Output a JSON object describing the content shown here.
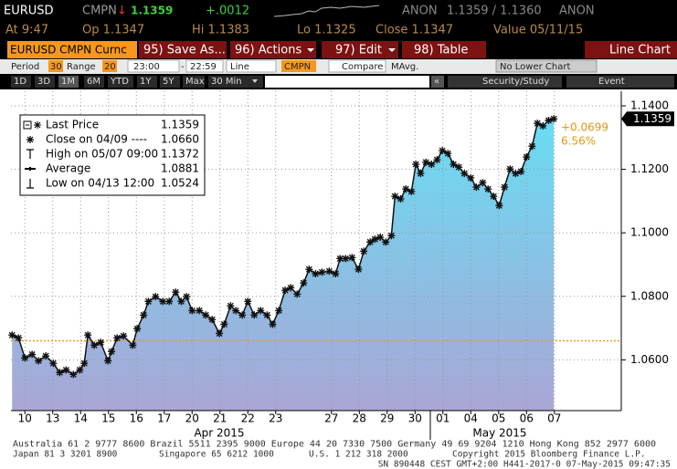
{
  "header": {
    "ticker": "EURUSD",
    "source": "CMPN",
    "direction": "↓",
    "price": "1.1359",
    "change": "+.0012",
    "bid_source": "ANON",
    "bid_ask": "1.1359 / 1.1360",
    "ask_source": "ANON"
  },
  "quote": {
    "time": "At 9:47",
    "open": "Op 1.1347",
    "high": "Hi 1.1383",
    "low": "Lo 1.1325",
    "close": "Close 1.1347",
    "value": "Value 05/11/15"
  },
  "menu": {
    "security": "EURUSD CMPN Curnc",
    "save": "95) Save As...",
    "actions": "96) Actions",
    "edit": "97) Edit",
    "table": "98) Table",
    "view": "Line Chart"
  },
  "settings": {
    "period_label": "Period",
    "period": "30",
    "range_label": "Range",
    "range": "20",
    "start": "23:00",
    "dash": "-",
    "end": "22:59",
    "style": "Line",
    "source": "CMPN",
    "compare": "Compare",
    "mavg": "MAvg.",
    "lower": "No Lower Chart"
  },
  "ranges": [
    "1D",
    "3D",
    "1M",
    "6M",
    "YTD",
    "1Y",
    "5Y",
    "Max",
    "30 Min"
  ],
  "nav": {
    "back": "«",
    "study": "Security/Study",
    "event": "Event"
  },
  "chart_data": {
    "type": "line",
    "x": [
      -0.46,
      -0.23,
      0,
      0.26,
      0.49,
      0.75,
      1.02,
      1.25,
      1.48,
      1.74,
      1.97,
      2.13,
      2.26,
      2.49,
      2.72,
      2.98,
      3.11,
      3.31,
      3.54,
      3.87,
      4.03,
      4.26,
      4.43,
      4.69,
      4.95,
      5.18,
      5.41,
      5.61,
      5.8,
      6.0,
      6.26,
      6.49,
      6.72,
      6.98,
      7.15,
      7.38,
      7.57,
      7.8,
      8.0,
      8.23,
      8.46,
      8.69,
      8.89,
      9.11,
      9.34,
      9.54,
      9.77,
      10.0,
      10.2,
      10.43,
      10.66,
      10.92,
      11.15,
      11.31,
      11.51,
      11.74,
      11.97,
      12.16,
      12.39,
      12.56,
      12.75,
      12.95,
      13.15,
      13.28,
      13.48,
      13.67,
      13.87,
      14.03,
      14.2,
      14.39,
      14.59,
      14.79,
      14.98,
      15.18,
      15.38,
      15.57,
      15.77,
      16.0,
      16.2,
      16.43,
      16.62,
      16.82,
      17.02,
      17.21,
      17.41,
      17.61,
      17.8,
      18.0,
      18.2,
      18.39,
      18.59,
      18.79,
      18.98
    ],
    "series": [
      {
        "name": "Last Price",
        "color": "#111111",
        "values": [
          1.0678,
          1.0669,
          1.0606,
          1.0617,
          1.0597,
          1.0612,
          1.0589,
          1.056,
          1.0568,
          1.0554,
          1.0568,
          1.0589,
          1.0678,
          1.0646,
          1.0655,
          1.0597,
          1.0626,
          1.0669,
          1.0675,
          1.0646,
          1.0698,
          1.0741,
          1.0784,
          1.0799,
          1.0784,
          1.0784,
          1.0813,
          1.0784,
          1.0799,
          1.0755,
          1.0755,
          1.0741,
          1.0727,
          1.0683,
          1.0712,
          1.077,
          1.0755,
          1.0741,
          1.0784,
          1.0741,
          1.0755,
          1.0741,
          1.0712,
          1.0755,
          1.0819,
          1.0827,
          1.0807,
          1.0842,
          1.0885,
          1.0871,
          1.0876,
          1.0879,
          1.0871,
          1.0919,
          1.0919,
          1.0922,
          1.0885,
          1.0942,
          1.0971,
          1.098,
          1.0986,
          1.0971,
          1.0991,
          1.1115,
          1.1107,
          1.1138,
          1.113,
          1.1216,
          1.1187,
          1.1222,
          1.1216,
          1.123,
          1.1259,
          1.125,
          1.1216,
          1.1207,
          1.1187,
          1.1173,
          1.1144,
          1.1158,
          1.1138,
          1.1115,
          1.1086,
          1.1144,
          1.1201,
          1.1187,
          1.1193,
          1.1239,
          1.1273,
          1.1345,
          1.1337,
          1.1354,
          1.1359
        ]
      }
    ],
    "last_price": 1.1359,
    "close_line": 1.066,
    "stats": [
      {
        "label": "Close on 04/09 ----",
        "value": "1.0660"
      },
      {
        "label": "High on 05/07 09:00",
        "value": "1.1372"
      },
      {
        "label": "Average",
        "value": "1.0881"
      },
      {
        "label": "Low on 04/13 12:00",
        "value": "1.0524"
      }
    ],
    "change_annotations": [
      "+0.0699",
      "6.56%"
    ],
    "xlim": [
      -0.5,
      21.4
    ],
    "xticks": [
      {
        "value": 0,
        "label": "10"
      },
      {
        "value": 1,
        "label": "13"
      },
      {
        "value": 2,
        "label": "14"
      },
      {
        "value": 3,
        "label": "15"
      },
      {
        "value": 4,
        "label": "16"
      },
      {
        "value": 5,
        "label": "17"
      },
      {
        "value": 6,
        "label": "20"
      },
      {
        "value": 7,
        "label": "21"
      },
      {
        "value": 8,
        "label": "22"
      },
      {
        "value": 9,
        "label": "23"
      },
      {
        "value": 11,
        "label": "27"
      },
      {
        "value": 12,
        "label": "28"
      },
      {
        "value": 13,
        "label": "29"
      },
      {
        "value": 14,
        "label": "30"
      },
      {
        "value": 15,
        "label": "01"
      },
      {
        "value": 16,
        "label": "04"
      },
      {
        "value": 17,
        "label": "05"
      },
      {
        "value": 18,
        "label": "06"
      },
      {
        "value": 19,
        "label": "07"
      }
    ],
    "month_labels": [
      "Apr 2015",
      "May 2015"
    ],
    "ylim": [
      1.044,
      1.1446
    ],
    "yticks": [
      {
        "value": 1.06,
        "label": "1.0600"
      },
      {
        "value": 1.08,
        "label": "1.0800"
      },
      {
        "value": 1.1,
        "label": "1.1000"
      },
      {
        "value": 1.12,
        "label": "1.1200"
      },
      {
        "value": 1.14,
        "label": "1.1400"
      }
    ],
    "grid": true
  },
  "footer": {
    "line1": "Australia 61 2 9777 8600 Brazil 5511 2395 9000 Europe 44 20 7330 7500 Germany 49 69 9204 1210 Hong Kong 852 2977 6000",
    "japan": "Japan 81 3 3201 8900",
    "singapore": "Singapore 65 6212 1000",
    "us": "U.S. 1 212 318 2000",
    "copyright": "Copyright 2015 Bloomberg Finance L.P.",
    "line3": "SN 890448 CEST GMT+2:00 H441-2017-0 07-May-2015 09:47:35"
  }
}
